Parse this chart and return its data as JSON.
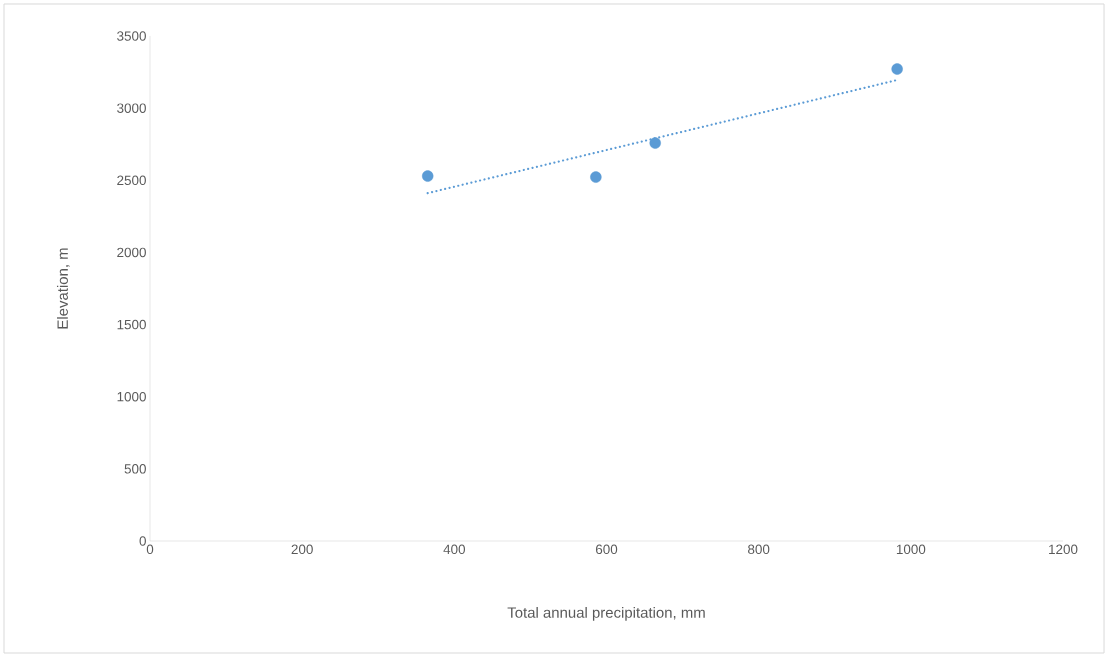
{
  "chart_data": {
    "type": "scatter",
    "xlabel": "Total annual precipitation, mm",
    "ylabel": "Elevation, m",
    "series": [
      {
        "color": "#5b9bd5",
        "marker": "circle",
        "x": [
          365,
          586,
          664,
          982
        ],
        "values": [
          2529,
          2522,
          2758,
          3271
        ]
      },
      {
        "type": "line",
        "color": "#5b9bd5",
        "marker": "none",
        "line_style": "dotted",
        "x": [
          365,
          982
        ],
        "values": [
          2411,
          3195
        ]
      }
    ],
    "xlim": [
      0,
      1200
    ],
    "ylim": [
      0,
      3500
    ],
    "xticks": [
      0,
      200,
      400,
      600,
      800,
      1000,
      1200
    ],
    "yticks": [
      0,
      500,
      1000,
      1500,
      2000,
      2500,
      3000,
      3500
    ],
    "grid": false
  }
}
